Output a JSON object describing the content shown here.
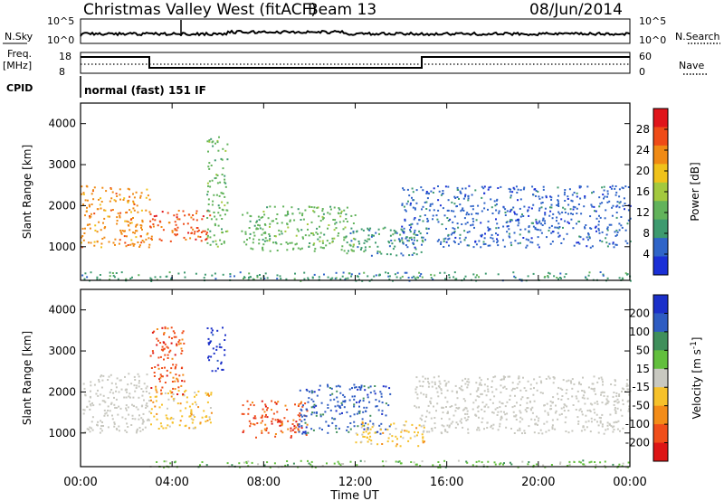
{
  "header": {
    "title": "Christmas Valley West (fitACF)",
    "beam": "Beam 13",
    "date": "08/Jun/2014"
  },
  "nsky_panel": {
    "left_label": "N.Sky",
    "left_ticks": [
      "10^5",
      "10^0"
    ],
    "right_label": "N.Search",
    "right_ticks": [
      "10^5",
      "10^0"
    ]
  },
  "freq_panel": {
    "left_label_1": "Freq.",
    "left_label_2": "[MHz]",
    "left_ticks": [
      "18",
      "8"
    ],
    "right_label": "Nave",
    "right_ticks": [
      "60",
      "0"
    ]
  },
  "cpid": {
    "label": "CPID",
    "value": "normal (fast) 151 IF"
  },
  "x_axis": {
    "ticks": [
      "00:00",
      "04:00",
      "08:00",
      "12:00",
      "16:00",
      "20:00",
      "00:00"
    ],
    "label": "Time UT"
  },
  "colors": {
    "power_scale": [
      "#1a2fd6",
      "#2f64c8",
      "#3d9a6f",
      "#62b35b",
      "#a3c93e",
      "#f0c21a",
      "#f08a14",
      "#ef4b17",
      "#e0141a"
    ],
    "velocity_scale": [
      "#dd1515",
      "#f04e1a",
      "#f38c18",
      "#f6c12a",
      "#c8c8c0",
      "#62bf3d",
      "#3f8f5b",
      "#2e5cc2",
      "#1b30c9"
    ],
    "ground_scatter": "#c8c8c0"
  },
  "chart_data": [
    {
      "type": "heatmap",
      "title": "Power",
      "ylabel": "Slant Range [km]",
      "ylim": [
        180,
        4500
      ],
      "yticks": [
        1000,
        2000,
        3000,
        4000
      ],
      "x_range_hours": [
        0,
        24
      ],
      "colorbar": {
        "label": "Power [dB]",
        "ticks": [
          "28",
          "24",
          "20",
          "16",
          "12",
          "8",
          "4"
        ],
        "range": [
          0,
          32
        ]
      },
      "regions": [
        {
          "t0": 0.0,
          "t1": 3.0,
          "r0": 1000,
          "r1": 2500,
          "level": 22
        },
        {
          "t0": 3.0,
          "t1": 5.7,
          "r0": 1150,
          "r1": 1900,
          "level": 26
        },
        {
          "t0": 5.5,
          "t1": 6.4,
          "r0": 1000,
          "r1": 3700,
          "level": 12
        },
        {
          "t0": 7.0,
          "t1": 12.0,
          "r0": 900,
          "r1": 2000,
          "level": 14
        },
        {
          "t0": 11.5,
          "t1": 15.0,
          "r0": 800,
          "r1": 1500,
          "level": 8
        },
        {
          "t0": 14.0,
          "t1": 24.0,
          "r0": 1000,
          "r1": 2500,
          "level": 4
        },
        {
          "t0": 0.0,
          "t1": 24.0,
          "r0": 180,
          "r1": 400,
          "level": 10
        }
      ]
    },
    {
      "type": "heatmap",
      "title": "Velocity",
      "ylabel": "Slant Range [km]",
      "ylim": [
        180,
        4500
      ],
      "yticks": [
        1000,
        2000,
        3000,
        4000
      ],
      "x_range_hours": [
        0,
        24
      ],
      "colorbar": {
        "label": "Velocity [m s^-1]",
        "ticks": [
          "200",
          "100",
          "50",
          "15",
          "-15",
          "-50",
          "-100",
          "-200"
        ],
        "range": [
          -250,
          250
        ]
      },
      "regions": [
        {
          "t0": 0.0,
          "t1": 3.0,
          "r0": 1000,
          "r1": 2500,
          "velocity": 0,
          "ground_scatter": true
        },
        {
          "t0": 3.0,
          "t1": 5.7,
          "r0": 1100,
          "r1": 2100,
          "velocity": -60
        },
        {
          "t0": 3.0,
          "t1": 4.5,
          "r0": 1900,
          "r1": 3600,
          "velocity": -180
        },
        {
          "t0": 5.5,
          "t1": 6.3,
          "r0": 2500,
          "r1": 3600,
          "velocity": 200
        },
        {
          "t0": 7.0,
          "t1": 10.0,
          "r0": 900,
          "r1": 1800,
          "velocity": -180
        },
        {
          "t0": 9.5,
          "t1": 13.5,
          "r0": 1000,
          "r1": 2200,
          "velocity": 180
        },
        {
          "t0": 12.0,
          "t1": 15.0,
          "r0": 700,
          "r1": 1300,
          "velocity": -80
        },
        {
          "t0": 14.5,
          "t1": 24.0,
          "r0": 1000,
          "r1": 2400,
          "velocity": 0,
          "ground_scatter": true
        },
        {
          "t0": 3.0,
          "t1": 24.0,
          "r0": 180,
          "r1": 350,
          "velocity": 40
        }
      ]
    }
  ]
}
